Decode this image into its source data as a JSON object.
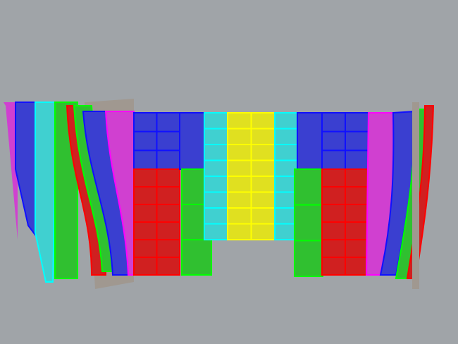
{
  "viewport": {
    "background": "#a0a4a8",
    "colors": {
      "blue": "#3a3fd0",
      "blue_edge": "#1010ff",
      "red": "#d02020",
      "red_edge": "#ff0000",
      "green": "#30c030",
      "green_edge": "#00ff00",
      "cyan": "#40d0d0",
      "cyan_edge": "#00ffff",
      "yellow": "#e0e020",
      "yellow_edge": "#ffff00",
      "magenta": "#d040d0",
      "magenta_edge": "#ff00ff",
      "backing": "#a09890"
    }
  }
}
